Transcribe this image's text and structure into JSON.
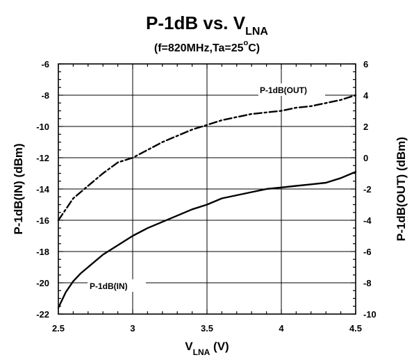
{
  "chart_data": {
    "type": "line",
    "title": {
      "main": "P-1dB vs. V",
      "sub": "LNA"
    },
    "subtitle": {
      "pre": "(f=820MHz,Ta=25",
      "sup": "o",
      "post": "C)"
    },
    "xlabel": {
      "main": "V",
      "sub": "LNA",
      "post": " (V)"
    },
    "ylabel_left": "P-1dB(IN) (dBm)",
    "ylabel_right": "P-1dB(OUT) (dBm)",
    "xlim": [
      2.5,
      4.5
    ],
    "ylim_left": [
      -22,
      -6
    ],
    "ylim_right": [
      -10,
      6
    ],
    "x_ticks": [
      "2.5",
      "3",
      "3.5",
      "4",
      "4.5"
    ],
    "y_left_ticks": [
      "-6",
      "-8",
      "-10",
      "-12",
      "-14",
      "-16",
      "-18",
      "-20",
      "-22"
    ],
    "y_right_ticks": [
      "6",
      "4",
      "2",
      "0",
      "-2",
      "-4",
      "-6",
      "-8",
      "-10"
    ],
    "grid": true,
    "series": [
      {
        "name": "P-1dB(IN)",
        "axis": "left",
        "style": "solid",
        "x": [
          2.5,
          2.55,
          2.6,
          2.65,
          2.7,
          2.8,
          2.9,
          3.0,
          3.1,
          3.2,
          3.3,
          3.4,
          3.5,
          3.6,
          3.7,
          3.8,
          3.9,
          4.0,
          4.1,
          4.2,
          4.3,
          4.4,
          4.5
        ],
        "y": [
          -21.6,
          -20.6,
          -19.9,
          -19.4,
          -19.0,
          -18.2,
          -17.6,
          -17.0,
          -16.5,
          -16.1,
          -15.7,
          -15.3,
          -15.0,
          -14.6,
          -14.4,
          -14.2,
          -14.0,
          -13.9,
          -13.8,
          -13.7,
          -13.6,
          -13.3,
          -12.9
        ]
      },
      {
        "name": "P-1dB(OUT)",
        "axis": "right",
        "style": "dashed",
        "x": [
          2.5,
          2.55,
          2.6,
          2.65,
          2.7,
          2.8,
          2.9,
          3.0,
          3.1,
          3.2,
          3.3,
          3.4,
          3.5,
          3.6,
          3.7,
          3.8,
          3.9,
          4.0,
          4.1,
          4.2,
          4.3,
          4.4,
          4.5
        ],
        "y": [
          -4.0,
          -3.3,
          -2.6,
          -2.2,
          -1.8,
          -1.0,
          -0.3,
          0.0,
          0.5,
          1.0,
          1.4,
          1.8,
          2.1,
          2.4,
          2.6,
          2.8,
          2.9,
          3.0,
          3.2,
          3.3,
          3.5,
          3.7,
          4.0
        ]
      }
    ]
  }
}
